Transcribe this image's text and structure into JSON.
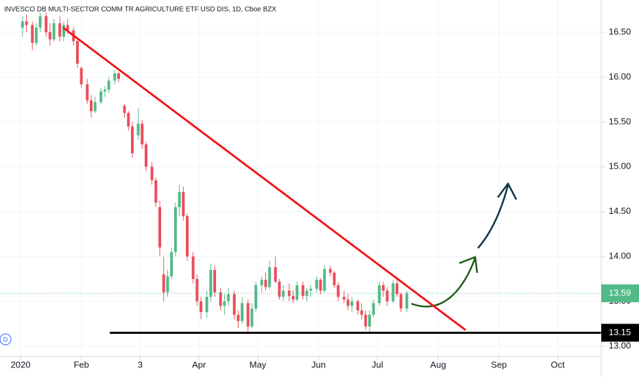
{
  "chart_data": {
    "type": "candlestick",
    "title": "INVESCO DB MULTI-SECTOR COMM TR AGRICULTURE ETF USD DIS, 1D, Cboe BZX",
    "x": [
      1,
      3,
      6,
      8,
      10,
      13,
      15,
      17,
      20,
      22,
      24,
      27,
      29,
      31,
      34,
      36,
      38,
      41,
      43,
      45,
      48,
      50,
      53,
      55,
      57,
      60,
      62,
      64,
      67,
      69,
      71,
      73,
      75,
      77,
      79,
      81,
      83,
      85,
      88,
      90,
      92,
      95,
      97,
      99,
      102,
      104,
      106,
      109,
      111,
      113,
      116,
      118,
      120,
      123,
      125,
      127,
      130,
      132,
      134,
      137,
      139,
      141,
      144,
      146,
      148,
      151,
      153,
      155,
      158,
      160,
      162,
      165,
      167,
      169,
      172,
      174,
      176,
      178,
      180,
      183,
      185,
      187,
      190,
      192,
      194,
      197
    ],
    "open": [
      16.55,
      16.62,
      16.58,
      16.38,
      16.55,
      16.68,
      16.5,
      16.42,
      16.6,
      16.45,
      16.58,
      16.52,
      16.4,
      16.1,
      15.92,
      15.74,
      15.62,
      15.72,
      15.84,
      15.86,
      15.96,
      16.04,
      15.68,
      15.6,
      15.45,
      15.35,
      15.48,
      15.25,
      15.0,
      14.85,
      14.55,
      13.8,
      13.6,
      13.78,
      14.05,
      14.55,
      14.72,
      14.45,
      14.0,
      13.75,
      13.5,
      13.38,
      13.55,
      13.85,
      13.6,
      13.45,
      13.5,
      13.58,
      13.35,
      13.28,
      13.48,
      13.22,
      13.42,
      13.68,
      13.74,
      13.66,
      13.88,
      13.72,
      13.55,
      13.62,
      13.56,
      13.52,
      13.68,
      13.56,
      13.62,
      13.64,
      13.74,
      13.62,
      13.86,
      13.82,
      13.68,
      13.55,
      13.52,
      13.45,
      13.5,
      13.4,
      13.35,
      13.22,
      13.35,
      13.48,
      13.68,
      13.62,
      13.5,
      13.7,
      13.58,
      13.42
    ],
    "high": [
      16.68,
      16.7,
      16.62,
      16.6,
      16.72,
      16.72,
      16.6,
      16.65,
      16.68,
      16.62,
      16.65,
      16.55,
      16.42,
      16.12,
      15.98,
      15.8,
      15.78,
      15.88,
      15.9,
      16.0,
      16.08,
      16.06,
      15.7,
      15.62,
      15.5,
      15.65,
      15.52,
      15.28,
      15.05,
      14.88,
      14.62,
      14.0,
      13.85,
      14.1,
      14.6,
      14.8,
      14.78,
      14.48,
      14.05,
      13.8,
      13.55,
      13.62,
      13.92,
      13.9,
      13.65,
      13.58,
      13.65,
      13.62,
      13.4,
      13.55,
      13.52,
      13.48,
      13.72,
      13.78,
      13.82,
      13.95,
      14.0,
      13.75,
      13.68,
      13.7,
      13.62,
      13.72,
      13.72,
      13.65,
      13.68,
      13.78,
      13.76,
      13.9,
      13.9,
      13.84,
      13.72,
      13.62,
      13.58,
      13.55,
      13.52,
      13.48,
      13.4,
      13.4,
      13.52,
      13.72,
      13.72,
      13.66,
      13.74,
      13.75,
      13.6,
      13.62
    ],
    "low": [
      16.45,
      16.5,
      16.3,
      16.35,
      16.5,
      16.45,
      16.35,
      16.4,
      16.4,
      16.4,
      16.48,
      16.35,
      16.1,
      15.88,
      15.7,
      15.55,
      15.6,
      15.7,
      15.78,
      15.82,
      15.92,
      15.94,
      15.55,
      15.4,
      15.1,
      15.3,
      15.2,
      14.95,
      14.8,
      14.55,
      14.0,
      13.5,
      13.55,
      13.75,
      14.0,
      14.45,
      14.4,
      13.95,
      13.7,
      13.45,
      13.3,
      13.32,
      13.5,
      13.55,
      13.4,
      13.35,
      13.45,
      13.3,
      13.2,
      13.25,
      13.15,
      13.2,
      13.38,
      13.6,
      13.62,
      13.64,
      13.7,
      13.52,
      13.5,
      13.5,
      13.48,
      13.5,
      13.52,
      13.5,
      13.55,
      13.6,
      13.58,
      13.6,
      13.78,
      13.65,
      13.5,
      13.48,
      13.4,
      13.38,
      13.35,
      13.3,
      13.18,
      13.15,
      13.32,
      13.45,
      13.55,
      13.45,
      13.48,
      13.55,
      13.38,
      13.38
    ],
    "close": [
      16.62,
      16.58,
      16.38,
      16.55,
      16.68,
      16.5,
      16.42,
      16.6,
      16.45,
      16.58,
      16.52,
      16.4,
      16.15,
      15.92,
      15.74,
      15.62,
      15.72,
      15.84,
      15.86,
      15.96,
      16.04,
      15.98,
      15.6,
      15.45,
      15.15,
      15.48,
      15.25,
      15.0,
      14.85,
      14.6,
      14.1,
      13.6,
      13.78,
      14.05,
      14.55,
      14.72,
      14.45,
      14.0,
      13.75,
      13.5,
      13.38,
      13.55,
      13.85,
      13.6,
      13.45,
      13.5,
      13.58,
      13.35,
      13.28,
      13.48,
      13.22,
      13.42,
      13.68,
      13.74,
      13.66,
      13.88,
      13.72,
      13.55,
      13.62,
      13.56,
      13.52,
      13.68,
      13.56,
      13.62,
      13.64,
      13.74,
      13.62,
      13.86,
      13.82,
      13.68,
      13.55,
      13.52,
      13.45,
      13.5,
      13.4,
      13.35,
      13.22,
      13.35,
      13.48,
      13.68,
      13.62,
      13.5,
      13.7,
      13.58,
      13.42,
      13.59
    ],
    "up_color": "#53b987",
    "down_color": "#eb4d5c",
    "xlim": [
      -10.5,
      296.2
    ],
    "xticks": [
      {
        "value": 0,
        "label": "2020"
      },
      {
        "value": 31,
        "label": "Feb"
      },
      {
        "value": 61,
        "label": "3"
      },
      {
        "value": 91,
        "label": "Apr"
      },
      {
        "value": 121,
        "label": "May"
      },
      {
        "value": 152,
        "label": "Jun"
      },
      {
        "value": 182,
        "label": "Jul"
      },
      {
        "value": 213,
        "label": "Aug"
      },
      {
        "value": 244,
        "label": "Sep"
      },
      {
        "value": 274,
        "label": "Oct"
      }
    ],
    "ylim": [
      12.886,
      16.859
    ],
    "yticks": [
      {
        "value": 13,
        "label": "13.00"
      },
      {
        "value": 13.5,
        "label": "13.50"
      },
      {
        "value": 14,
        "label": "14.00"
      },
      {
        "value": 14.5,
        "label": "14.50"
      },
      {
        "value": 15,
        "label": "15.00"
      },
      {
        "value": 15.5,
        "label": "15.50"
      },
      {
        "value": 16,
        "label": "16.00"
      },
      {
        "value": 16.5,
        "label": "16.50"
      }
    ],
    "grid": true,
    "last_price": 13.59,
    "last_price_color": "#53b987",
    "support": {
      "value": 13.15,
      "x_start": 45.5,
      "color": "#000000"
    },
    "trendline": {
      "x": [
        21.7,
        227
      ],
      "y": [
        16.55,
        13.18
      ],
      "color": "#f0171b"
    }
  }
}
